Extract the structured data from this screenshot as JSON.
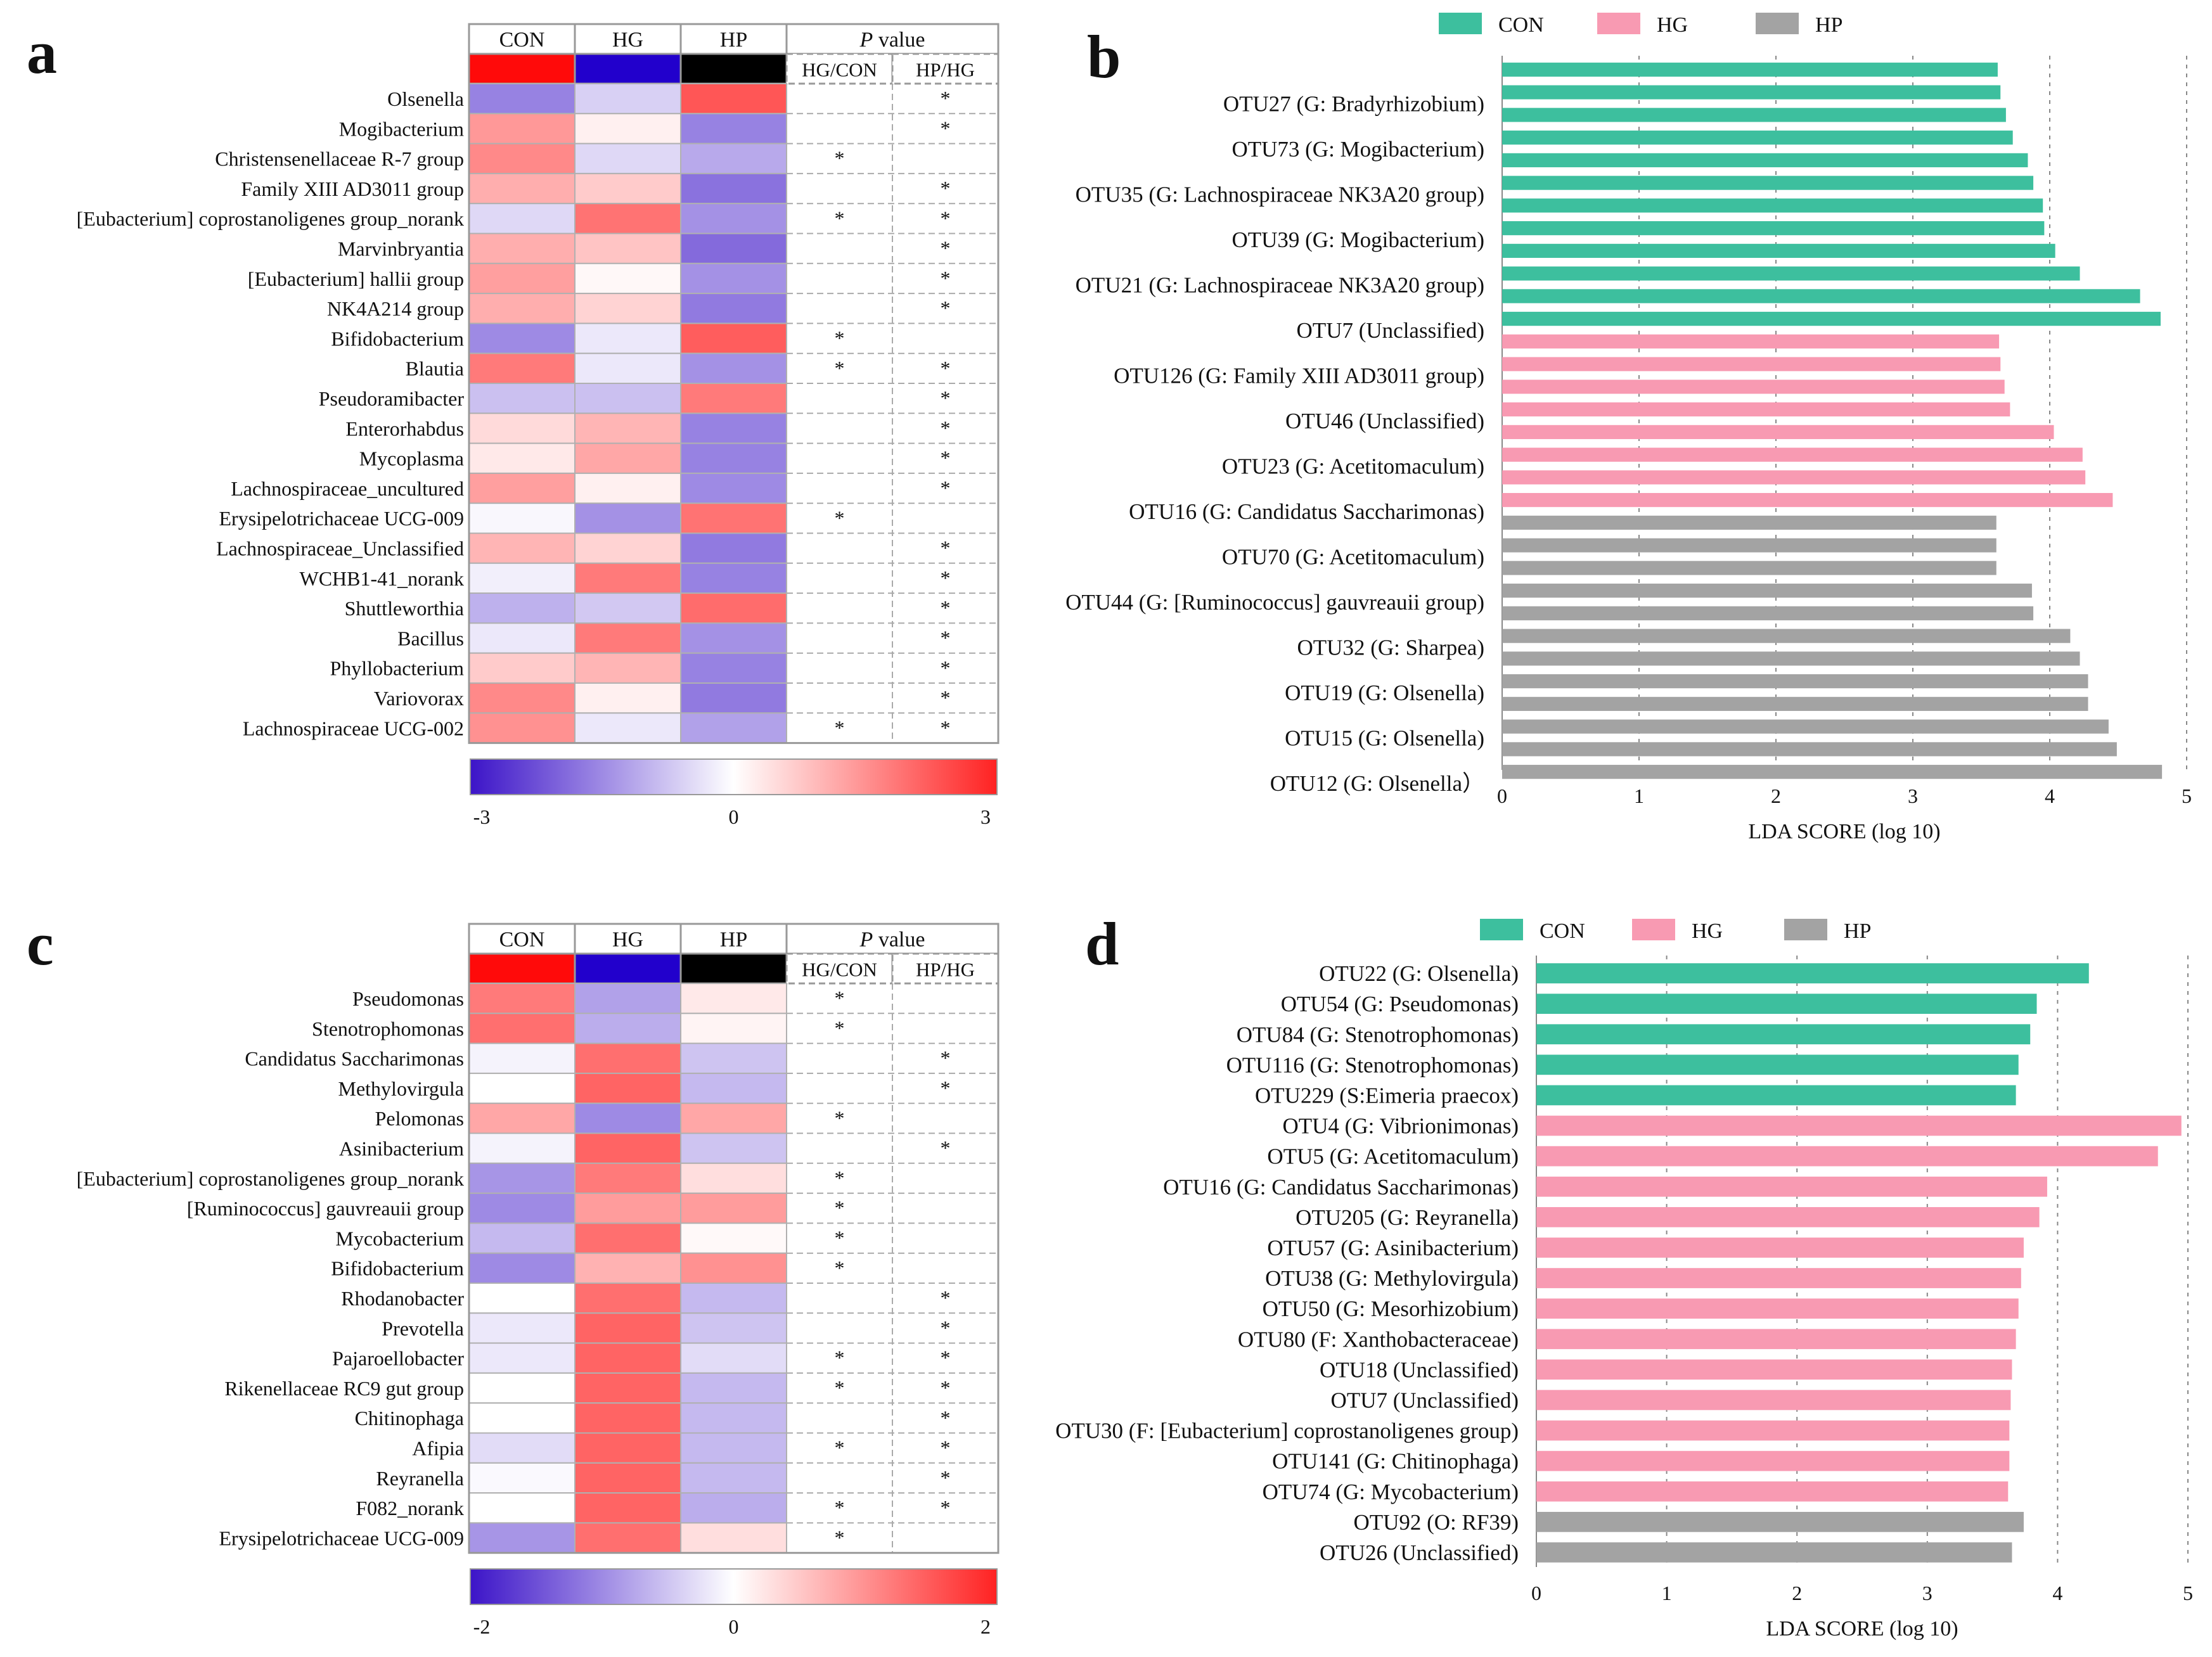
{
  "chart_data": [
    {
      "id": "a",
      "type": "heatmap",
      "panel_label": "a",
      "columns": [
        "CON",
        "HG",
        "HP"
      ],
      "group_colors": [
        "#ff0a0a",
        "#2200cc",
        "#000000"
      ],
      "pvalue_header": "P",
      "pvalue_header_suffix": "value",
      "pvalue_columns": [
        "HG/CON",
        "HP/HG"
      ],
      "rows": [
        "Olsenella",
        "Mogibacterium",
        "Christensenellaceae R-7 group",
        "Family XIII AD3011 group",
        "[Eubacterium] coprostanoligenes group_norank",
        "Marvinbryantia",
        "[Eubacterium] hallii group",
        "NK4A214 group",
        "Bifidobacterium",
        "Blautia",
        "Pseudoramibacter",
        "Enterorhabdus",
        "Mycoplasma",
        "Lachnospiraceae_uncultured",
        "Erysipelotrichaceae UCG-009",
        "Lachnospiraceae_Unclassified",
        "WCHB1-41_norank",
        "Shuttleworthia",
        "Bacillus",
        "Phyllobacterium",
        "Variovorax",
        "Lachnospiraceae UCG-002"
      ],
      "values": [
        [
          -1.6,
          -0.6,
          2.3
        ],
        [
          1.4,
          0.2,
          -1.6
        ],
        [
          1.6,
          -0.5,
          -1.1
        ],
        [
          1.1,
          0.7,
          -1.8
        ],
        [
          -0.5,
          1.9,
          -1.4
        ],
        [
          1.1,
          0.8,
          -1.9
        ],
        [
          1.3,
          0.1,
          -1.4
        ],
        [
          1.1,
          0.6,
          -1.7
        ],
        [
          -1.5,
          -0.3,
          2.2
        ],
        [
          1.8,
          -0.3,
          -1.4
        ],
        [
          -0.8,
          -0.8,
          1.8
        ],
        [
          0.5,
          1.0,
          -1.6
        ],
        [
          0.3,
          1.2,
          -1.6
        ],
        [
          1.3,
          0.2,
          -1.5
        ],
        [
          -0.1,
          -1.4,
          1.9
        ],
        [
          1.0,
          0.6,
          -1.7
        ],
        [
          -0.2,
          1.8,
          -1.6
        ],
        [
          -1.0,
          -0.7,
          2.0
        ],
        [
          -0.3,
          1.8,
          -1.4
        ],
        [
          0.7,
          1.0,
          -1.6
        ],
        [
          1.6,
          0.2,
          -1.7
        ],
        [
          1.5,
          -0.3,
          -1.2
        ]
      ],
      "sig_hg_con": [
        "",
        "",
        "*",
        "",
        "*",
        "",
        "",
        "",
        "*",
        "*",
        "",
        "",
        "",
        "",
        "*",
        "",
        "",
        "",
        "",
        "",
        "",
        "*"
      ],
      "sig_hp_hg": [
        "*",
        "*",
        "",
        "*",
        "*",
        "*",
        "*",
        "*",
        "",
        "*",
        "*",
        "*",
        "*",
        "*",
        "",
        "*",
        "*",
        "*",
        "*",
        "*",
        "*",
        "*"
      ],
      "colorbar": {
        "min": -3,
        "max": 3,
        "tick_labels": [
          "-3",
          "0",
          "3"
        ]
      }
    },
    {
      "id": "b",
      "type": "bar",
      "orientation": "horizontal",
      "panel_label": "b",
      "xlabel": "LDA SCORE (log 10)",
      "xlim": [
        0,
        5
      ],
      "tick_labels": [
        "0",
        "1",
        "2",
        "3",
        "4",
        "5"
      ],
      "legend": [
        {
          "name": "CON",
          "color": "#3dbf9e"
        },
        {
          "name": "HG",
          "color": "#f89ab2"
        },
        {
          "name": "HP",
          "color": "#a3a3a3"
        }
      ],
      "bars": [
        {
          "label": "",
          "value": 3.62,
          "group": "CON"
        },
        {
          "label": "OTU27 (G: Bradyrhizobium)",
          "value": 3.64,
          "group": "CON"
        },
        {
          "label": "",
          "value": 3.68,
          "group": "CON"
        },
        {
          "label": "OTU73 (G: Mogibacterium)",
          "value": 3.73,
          "group": "CON"
        },
        {
          "label": "",
          "value": 3.84,
          "group": "CON"
        },
        {
          "label": "OTU35 (G: Lachnospiraceae NK3A20 group)",
          "value": 3.88,
          "group": "CON"
        },
        {
          "label": "",
          "value": 3.95,
          "group": "CON"
        },
        {
          "label": "OTU39 (G: Mogibacterium)",
          "value": 3.96,
          "group": "CON"
        },
        {
          "label": "",
          "value": 4.04,
          "group": "CON"
        },
        {
          "label": "OTU21 (G: Lachnospiraceae NK3A20 group)",
          "value": 4.22,
          "group": "CON"
        },
        {
          "label": "",
          "value": 4.66,
          "group": "CON"
        },
        {
          "label": "OTU7 (Unclassified)",
          "value": 4.81,
          "group": "CON"
        },
        {
          "label": "",
          "value": 3.63,
          "group": "HG"
        },
        {
          "label": "OTU126 (G: Family XIII AD3011 group)",
          "value": 3.64,
          "group": "HG"
        },
        {
          "label": "",
          "value": 3.67,
          "group": "HG"
        },
        {
          "label": "OTU46 (Unclassified)",
          "value": 3.71,
          "group": "HG"
        },
        {
          "label": "",
          "value": 4.03,
          "group": "HG"
        },
        {
          "label": "OTU23 (G: Acetitomaculum)",
          "value": 4.24,
          "group": "HG"
        },
        {
          "label": "",
          "value": 4.26,
          "group": "HG"
        },
        {
          "label": "OTU16 (G: Candidatus Saccharimonas)",
          "value": 4.46,
          "group": "HG"
        },
        {
          "label": "",
          "value": 3.61,
          "group": "HP"
        },
        {
          "label": "OTU70 (G: Acetitomaculum)",
          "value": 3.61,
          "group": "HP"
        },
        {
          "label": "",
          "value": 3.61,
          "group": "HP"
        },
        {
          "label": "OTU44 (G: [Ruminococcus] gauvreauii group)",
          "value": 3.87,
          "group": "HP"
        },
        {
          "label": "",
          "value": 3.88,
          "group": "HP"
        },
        {
          "label": "OTU32 (G: Sharpea)",
          "value": 4.15,
          "group": "HP"
        },
        {
          "label": "",
          "value": 4.22,
          "group": "HP"
        },
        {
          "label": "OTU19 (G: Olsenella)",
          "value": 4.28,
          "group": "HP"
        },
        {
          "label": "",
          "value": 4.28,
          "group": "HP"
        },
        {
          "label": "OTU15 (G: Olsenella)",
          "value": 4.43,
          "group": "HP"
        },
        {
          "label": "",
          "value": 4.49,
          "group": "HP"
        },
        {
          "label": "OTU12 (G: Olsenella）",
          "value": 4.82,
          "group": "HP"
        }
      ]
    },
    {
      "id": "c",
      "type": "heatmap",
      "panel_label": "c",
      "columns": [
        "CON",
        "HG",
        "HP"
      ],
      "group_colors": [
        "#ff0a0a",
        "#2200cc",
        "#000000"
      ],
      "pvalue_header": "P",
      "pvalue_header_suffix": "value",
      "pvalue_columns": [
        "HG/CON",
        "HP/HG"
      ],
      "rows": [
        "Pseudomonas",
        "Stenotrophomonas",
        "Candidatus Saccharimonas",
        "Methylovirgula",
        "Pelomonas",
        "Asinibacterium",
        "[Eubacterium] coprostanoligenes group_norank",
        "[Ruminococcus] gauvreauii group",
        "Mycobacterium",
        "Bifidobacterium",
        "Rhodanobacter",
        "Prevotella",
        "Pajaroellobacter",
        "Rikenellaceae RC9 gut group",
        "Chitinophaga",
        "Afipia",
        "Reyranella",
        "F082_norank",
        "Erysipelotrichaceae UCG-009"
      ],
      "values": [
        [
          1.2,
          -0.8,
          0.2
        ],
        [
          1.3,
          -0.7,
          0.1
        ],
        [
          -0.1,
          1.3,
          -0.5
        ],
        [
          0.0,
          1.4,
          -0.6
        ],
        [
          0.8,
          -1.0,
          0.8
        ],
        [
          -0.1,
          1.4,
          -0.5
        ],
        [
          -0.9,
          1.2,
          0.3
        ],
        [
          -1.0,
          0.9,
          0.9
        ],
        [
          -0.6,
          1.3,
          0.05
        ],
        [
          -1.0,
          0.7,
          1.0
        ],
        [
          0.0,
          1.3,
          -0.6
        ],
        [
          -0.2,
          1.4,
          -0.5
        ],
        [
          -0.2,
          1.4,
          -0.3
        ],
        [
          0.0,
          1.4,
          -0.6
        ],
        [
          0.0,
          1.4,
          -0.6
        ],
        [
          -0.3,
          1.4,
          -0.6
        ],
        [
          -0.05,
          1.4,
          -0.6
        ],
        [
          0.0,
          1.4,
          -0.7
        ],
        [
          -0.9,
          1.3,
          0.3
        ]
      ],
      "sig_hg_con": [
        "*",
        "*",
        "",
        "",
        "*",
        "",
        "*",
        "*",
        "*",
        "*",
        "",
        "",
        "*",
        "*",
        "",
        "*",
        "",
        "*",
        "*"
      ],
      "sig_hp_hg": [
        "",
        "",
        "*",
        "*",
        "",
        "*",
        "",
        "",
        "",
        "",
        "*",
        "*",
        "*",
        "*",
        "*",
        "*",
        "*",
        "*",
        ""
      ],
      "colorbar": {
        "min": -2,
        "max": 2,
        "tick_labels": [
          "-2",
          "0",
          "2"
        ]
      }
    },
    {
      "id": "d",
      "type": "bar",
      "orientation": "horizontal",
      "panel_label": "d",
      "xlabel": "LDA SCORE (log 10)",
      "xlim": [
        0,
        5
      ],
      "tick_labels": [
        "0",
        "1",
        "2",
        "3",
        "4",
        "5"
      ],
      "legend": [
        {
          "name": "CON",
          "color": "#3dbf9e"
        },
        {
          "name": "HG",
          "color": "#f89ab2"
        },
        {
          "name": "HP",
          "color": "#a3a3a3"
        }
      ],
      "bars": [
        {
          "label": "OTU22 (G: Olsenella)",
          "value": 4.24,
          "group": "CON"
        },
        {
          "label": "OTU54 (G: Pseudomonas)",
          "value": 3.84,
          "group": "CON"
        },
        {
          "label": "OTU84 (G: Stenotrophomonas)",
          "value": 3.79,
          "group": "CON"
        },
        {
          "label": "OTU116 (G: Stenotrophomonas)",
          "value": 3.7,
          "group": "CON"
        },
        {
          "label": "OTU229 (S:Eimeria praecox)",
          "value": 3.68,
          "group": "CON"
        },
        {
          "label": "OTU4 (G: Vibrionimonas)",
          "value": 4.95,
          "group": "HG"
        },
        {
          "label": "OTU5 (G: Acetitomaculum)",
          "value": 4.77,
          "group": "HG"
        },
        {
          "label": "OTU16 (G: Candidatus Saccharimonas)",
          "value": 3.92,
          "group": "HG"
        },
        {
          "label": "OTU205 (G: Reyranella)",
          "value": 3.86,
          "group": "HG"
        },
        {
          "label": "OTU57 (G: Asinibacterium)",
          "value": 3.74,
          "group": "HG"
        },
        {
          "label": "OTU38 (G: Methylovirgula)",
          "value": 3.72,
          "group": "HG"
        },
        {
          "label": "OTU50 (G: Mesorhizobium)",
          "value": 3.7,
          "group": "HG"
        },
        {
          "label": "OTU80 (F: Xanthobacteraceae)",
          "value": 3.68,
          "group": "HG"
        },
        {
          "label": "OTU18 (Unclassified)",
          "value": 3.65,
          "group": "HG"
        },
        {
          "label": "OTU7 (Unclassified)",
          "value": 3.64,
          "group": "HG"
        },
        {
          "label": "OTU30 (F: [Eubacterium] coprostanoligenes group)",
          "value": 3.63,
          "group": "HG"
        },
        {
          "label": "OTU141 (G: Chitinophaga)",
          "value": 3.63,
          "group": "HG"
        },
        {
          "label": "OTU74 (G: Mycobacterium)",
          "value": 3.62,
          "group": "HG"
        },
        {
          "label": "OTU92 (O: RF39)",
          "value": 3.74,
          "group": "HP"
        },
        {
          "label": "OTU26 (Unclassified)",
          "value": 3.65,
          "group": "HP"
        }
      ]
    }
  ]
}
